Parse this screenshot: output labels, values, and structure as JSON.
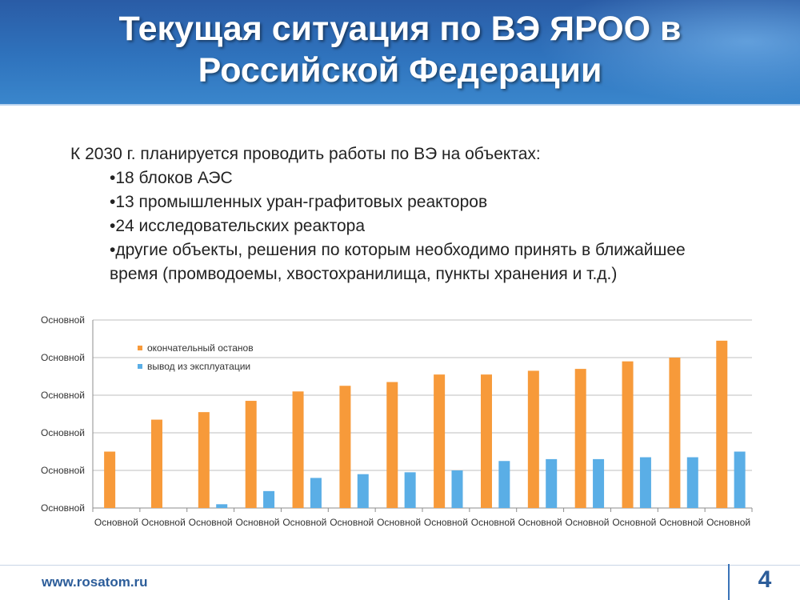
{
  "slide": {
    "title": "Текущая ситуация по ВЭ ЯРОО в Российской Федерации",
    "intro": "К 2030 г. планируется проводить работы по ВЭ на объектах:",
    "bullets": [
      "•18 блоков АЭС",
      "•13 промышленных уран-графитовых реакторов",
      "•24 исследовательских реактора",
      "•другие объекты, решения по которым необходимо принять в ближайшее время (промводоемы, хвостохранилища, пункты хранения и т.д.)"
    ],
    "footer_url": "www.rosatom.ru",
    "page_number": "4"
  },
  "colors": {
    "header_blue": "#2f73bd",
    "series_orange": "#f79a3a",
    "series_blue": "#5aaee6",
    "grid": "#bfbfbf"
  },
  "chart_data": {
    "type": "bar",
    "title": "",
    "xlabel": "",
    "ylabel": "",
    "ylim": [
      0,
      100
    ],
    "y_tick_labels": [
      "Основной",
      "Основной",
      "Основной",
      "Основной",
      "Основной",
      "Основной"
    ],
    "categories": [
      "Основной",
      "Основной",
      "Основной",
      "Основной",
      "Основной",
      "Основной",
      "Основной",
      "Основной",
      "Основной",
      "Основной",
      "Основной",
      "Основной",
      "Основной",
      "Основной"
    ],
    "series": [
      {
        "name": "окончательный останов",
        "color": "#f79a3a",
        "values": [
          30,
          47,
          51,
          57,
          62,
          65,
          67,
          71,
          71,
          73,
          74,
          78,
          80,
          89
        ]
      },
      {
        "name": "вывод из эксплуатации",
        "color": "#5aaee6",
        "values": [
          0,
          0,
          2,
          9,
          16,
          18,
          19,
          20,
          25,
          26,
          26,
          27,
          27,
          30
        ]
      }
    ],
    "grid": true,
    "legend_position": "top-left"
  }
}
